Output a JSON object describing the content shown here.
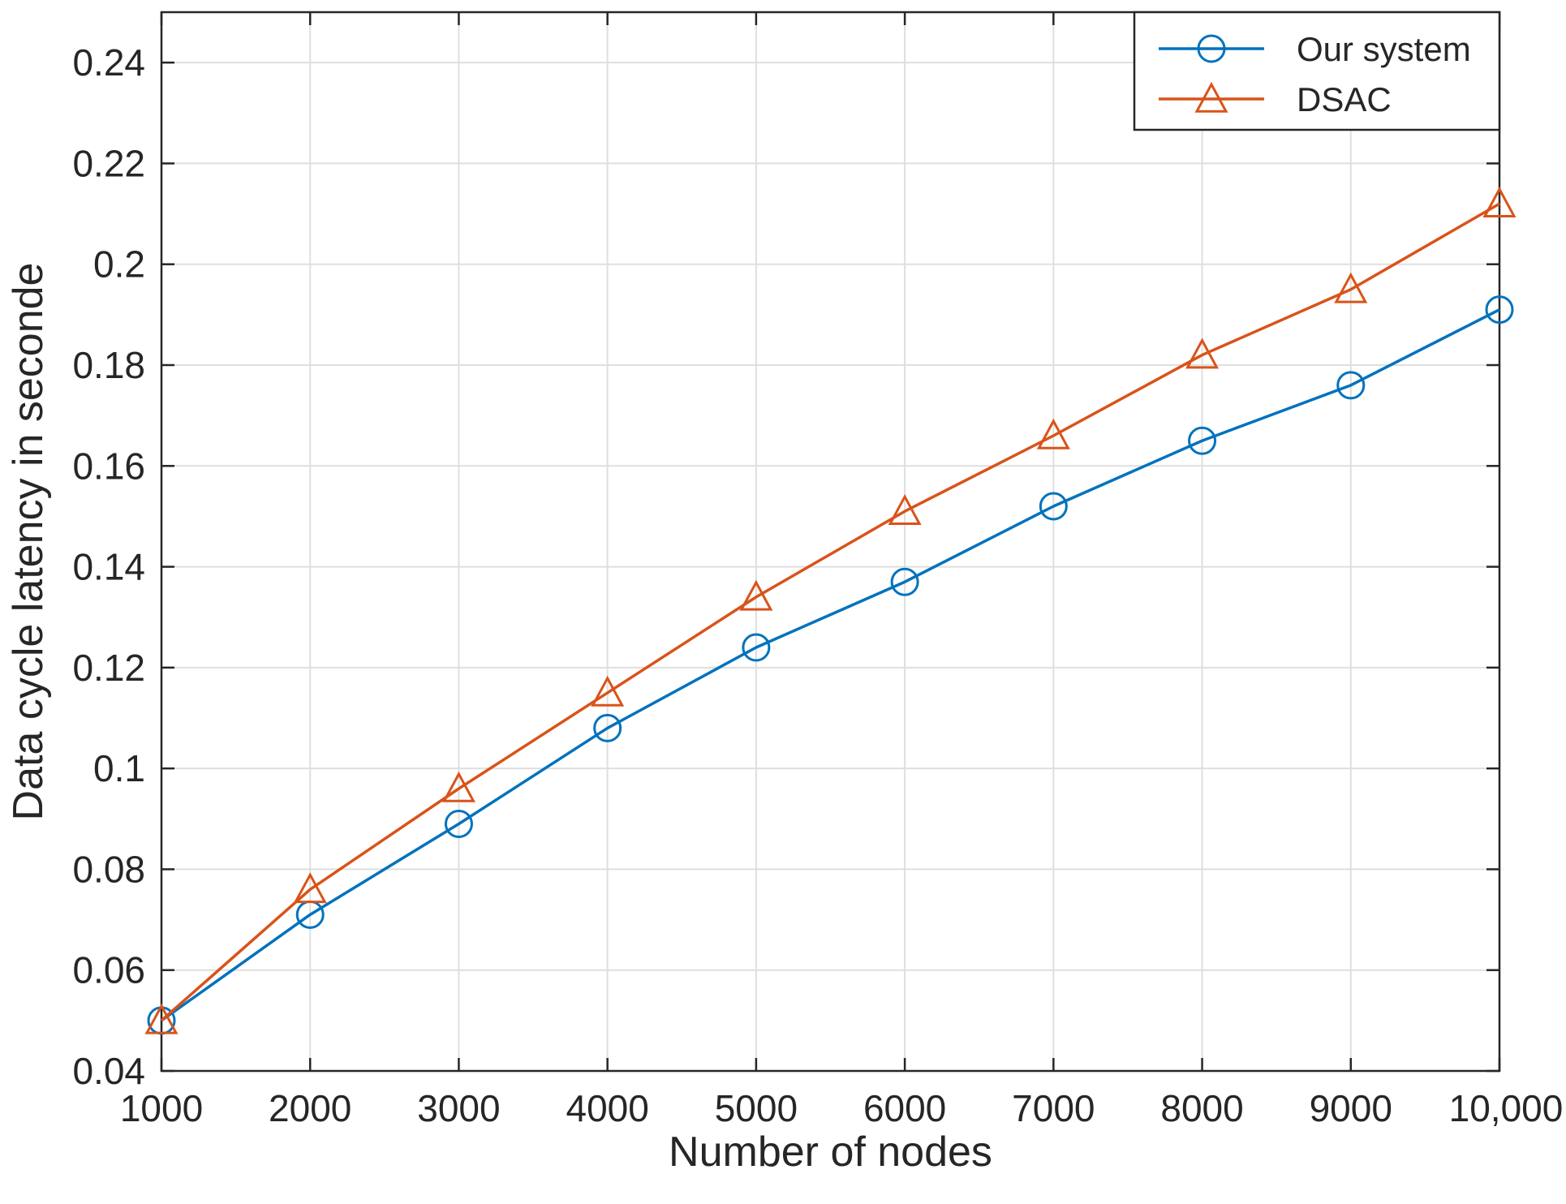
{
  "chart_data": {
    "type": "line",
    "title": "",
    "xlabel": "Number of nodes",
    "ylabel": "Data cycle latency in seconde",
    "x": [
      1000,
      2000,
      3000,
      4000,
      5000,
      6000,
      7000,
      8000,
      9000,
      10000
    ],
    "x_tick_labels": [
      "1000",
      "2000",
      "3000",
      "4000",
      "5000",
      "6000",
      "7000",
      "8000",
      "9000",
      "10,000"
    ],
    "xlim": [
      1000,
      10000
    ],
    "ylim": [
      0.04,
      0.25
    ],
    "y_ticks": [
      0.04,
      0.06,
      0.08,
      0.1,
      0.12,
      0.14,
      0.16,
      0.18,
      0.2,
      0.22,
      0.24
    ],
    "y_tick_labels": [
      "0.04",
      "0.06",
      "0.08",
      "0.1",
      "0.12",
      "0.14",
      "0.16",
      "0.18",
      "0.2",
      "0.22",
      "0.24"
    ],
    "grid": true,
    "legend_position": "top-right",
    "series": [
      {
        "name": "Our system",
        "marker": "circle",
        "color": "#0072BD",
        "values": [
          0.05,
          0.071,
          0.089,
          0.108,
          0.124,
          0.137,
          0.152,
          0.165,
          0.176,
          0.191
        ]
      },
      {
        "name": "DSAC",
        "marker": "triangle",
        "color": "#D95319",
        "values": [
          0.05,
          0.076,
          0.096,
          0.115,
          0.134,
          0.151,
          0.166,
          0.182,
          0.195,
          0.212
        ]
      }
    ]
  }
}
